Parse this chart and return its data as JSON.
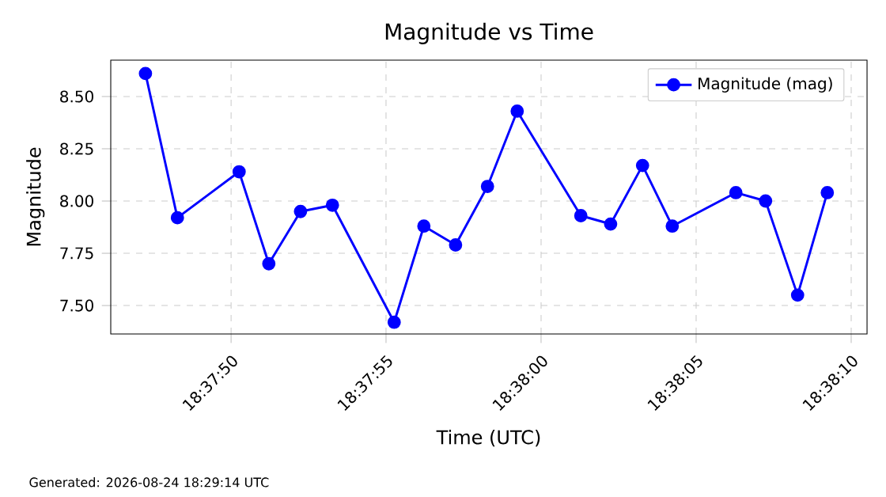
{
  "chart_data": {
    "type": "line",
    "title": "Magnitude vs Time",
    "xlabel": "Time (UTC)",
    "ylabel": "Magnitude",
    "x": [
      18.629789,
      18.630075,
      18.630628,
      18.630894,
      18.631178,
      18.631464,
      18.632017,
      18.632283,
      18.632567,
      18.632853,
      18.633119,
      18.633689,
      18.633956,
      18.634242,
      18.634508,
      18.635078,
      18.635344,
      18.635631,
      18.635897
    ],
    "series": [
      {
        "name": "Magnitude (mag)",
        "color": "#0000ff",
        "values": [
          8.61,
          7.92,
          8.14,
          7.7,
          7.95,
          7.98,
          7.42,
          7.88,
          7.79,
          8.07,
          8.43,
          7.93,
          7.89,
          8.17,
          7.88,
          8.04,
          8.0,
          7.55,
          8.04
        ]
      }
    ],
    "xlim": [
      18.629478,
      18.636253
    ],
    "ylim": [
      7.364,
      8.674
    ],
    "xticks": [
      {
        "value": 18.630556,
        "label": "18:37:50"
      },
      {
        "value": 18.631944,
        "label": "18:37:55"
      },
      {
        "value": 18.633333,
        "label": "18:38:00"
      },
      {
        "value": 18.634722,
        "label": "18:38:05"
      },
      {
        "value": 18.636111,
        "label": "18:38:10"
      }
    ],
    "yticks": [
      {
        "value": 7.5,
        "label": "7.50"
      },
      {
        "value": 7.75,
        "label": "7.75"
      },
      {
        "value": 8.0,
        "label": "8.00"
      },
      {
        "value": 8.25,
        "label": "8.25"
      },
      {
        "value": 8.5,
        "label": "8.50"
      }
    ],
    "grid": true,
    "legend": "top right",
    "marker": "circle",
    "line_style": "solid",
    "annotations": [
      "Generated: 2026-08-24 18:29:14 UTC"
    ]
  }
}
